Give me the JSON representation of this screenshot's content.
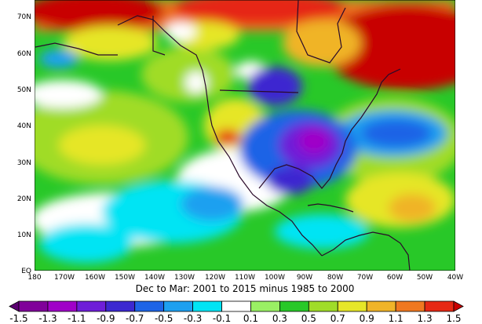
{
  "map": {
    "caption": "Dec to Mar: 2001 to 2015 minus 1985 to 2000",
    "lat_ticks": [
      "EQ",
      "10N",
      "20N",
      "30N",
      "40N",
      "50N",
      "60N",
      "70N"
    ],
    "lon_ticks": [
      "180",
      "170W",
      "160W",
      "150W",
      "140W",
      "130W",
      "120W",
      "110W",
      "100W",
      "90W",
      "80W",
      "70W",
      "60W",
      "50W",
      "40W"
    ]
  },
  "colorbar": {
    "labels": [
      "-1.5",
      "-1.3",
      "-1.1",
      "-0.9",
      "-0.7",
      "-0.5",
      "-0.3",
      "-0.1",
      "0.1",
      "0.3",
      "0.5",
      "0.7",
      "0.9",
      "1.1",
      "1.3",
      "1.5"
    ],
    "colors": [
      "#5a0070",
      "#80009a",
      "#a000c8",
      "#6e1ed8",
      "#3c28d0",
      "#1e64e6",
      "#1ea0f0",
      "#00e4f4",
      "#ffffff",
      "#9af064",
      "#28c828",
      "#a0dc28",
      "#e6e628",
      "#f0b428",
      "#f07820",
      "#e62814",
      "#c80000"
    ]
  }
}
